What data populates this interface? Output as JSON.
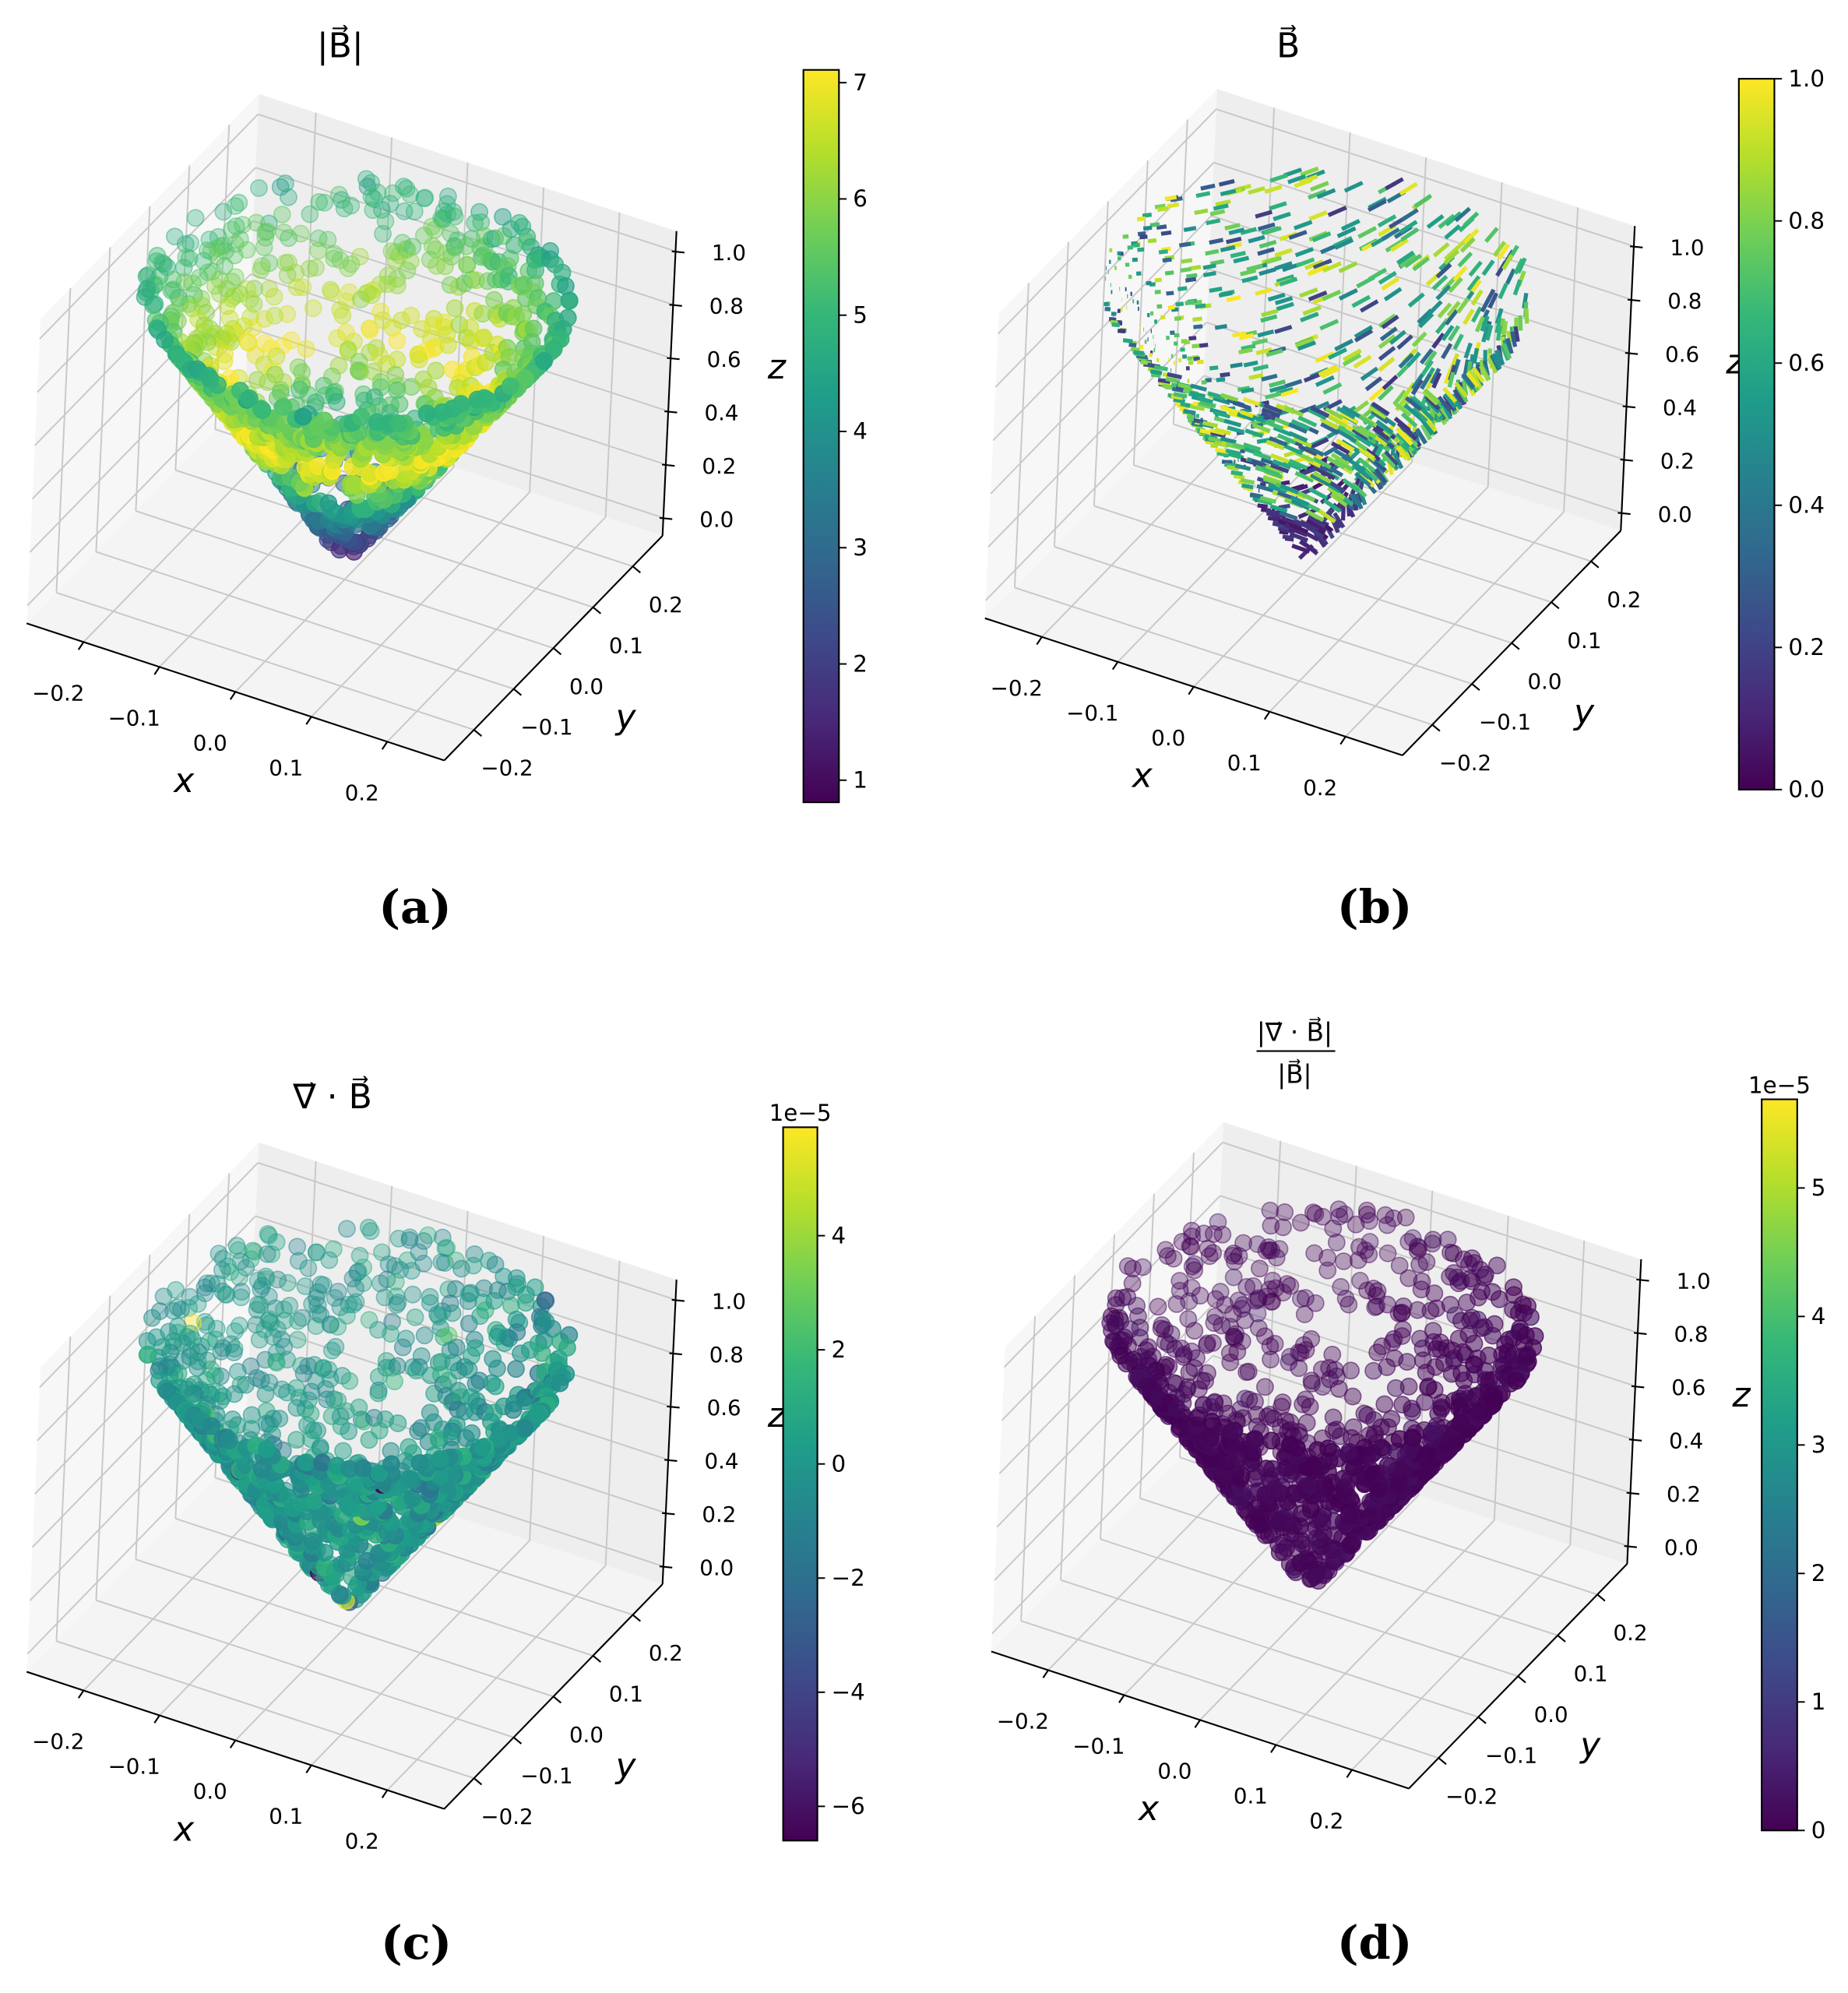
{
  "chart_data": [
    {
      "type": "scatter3d",
      "title": "|B⃗|",
      "xlabel": "x",
      "ylabel": "y",
      "zlabel": "z",
      "xticks": [
        "−0.2",
        "−0.1",
        "0.0",
        "0.1",
        "0.2"
      ],
      "yticks": [
        "−0.2",
        "−0.1",
        "0.0",
        "0.1",
        "0.2"
      ],
      "zticks": [
        "0.0",
        "0.2",
        "0.4",
        "0.6",
        "0.8",
        "1.0"
      ],
      "xlim": [
        -0.275,
        0.275
      ],
      "ylim": [
        -0.275,
        0.275
      ],
      "zlim": [
        -0.067,
        1.076
      ],
      "colormap": "viridis",
      "colorbar": {
        "range": [
          0.81,
          7.11
        ],
        "ticks": [
          "1",
          "2",
          "3",
          "4",
          "5",
          "6",
          "7"
        ],
        "tick_values": [
          1,
          2,
          3,
          4,
          5,
          6,
          7
        ],
        "offset_text": ""
      },
      "shape": "cone surface, apex at z=0, radius ~0.25 at z=1",
      "caption": "(a)"
    },
    {
      "type": "quiver3d",
      "title": "B⃗",
      "xlabel": "x",
      "ylabel": "y",
      "zlabel": "z",
      "xticks": [
        "−0.2",
        "−0.1",
        "0.0",
        "0.1",
        "0.2"
      ],
      "yticks": [
        "−0.2",
        "−0.1",
        "0.0",
        "0.1",
        "0.2"
      ],
      "zticks": [
        "0.0",
        "0.2",
        "0.4",
        "0.6",
        "0.8",
        "1.0"
      ],
      "xlim": [
        -0.275,
        0.275
      ],
      "ylim": [
        -0.275,
        0.275
      ],
      "zlim": [
        -0.067,
        1.076
      ],
      "colormap": "viridis",
      "colorbar": {
        "range": [
          0.0,
          1.0
        ],
        "ticks": [
          "0.0",
          "0.2",
          "0.4",
          "0.6",
          "0.8",
          "1.0"
        ],
        "tick_values": [
          0,
          0.2,
          0.4,
          0.6,
          0.8,
          1.0
        ],
        "offset_text": ""
      },
      "caption": "(b)"
    },
    {
      "type": "scatter3d",
      "title": "∇⃗ · B⃗",
      "xlabel": "x",
      "ylabel": "y",
      "zlabel": "z",
      "xticks": [
        "−0.2",
        "−0.1",
        "0.0",
        "0.1",
        "0.2"
      ],
      "yticks": [
        "−0.2",
        "−0.1",
        "0.0",
        "0.1",
        "0.2"
      ],
      "zticks": [
        "0.0",
        "0.2",
        "0.4",
        "0.6",
        "0.8",
        "1.0"
      ],
      "xlim": [
        -0.275,
        0.275
      ],
      "ylim": [
        -0.275,
        0.275
      ],
      "zlim": [
        -0.067,
        1.076
      ],
      "colormap": "viridis",
      "colorbar": {
        "range": [
          -6.6,
          5.9
        ],
        "ticks": [
          "−6",
          "−4",
          "−2",
          "0",
          "2",
          "4"
        ],
        "tick_values": [
          -6,
          -4,
          -2,
          0,
          2,
          4
        ],
        "offset_text": "1e−5"
      },
      "caption": "(c)"
    },
    {
      "type": "scatter3d",
      "title": "|∇⃗ · B⃗| / |B⃗|",
      "title_numerator": "|∇⃗ · B⃗|",
      "title_denominator": "|B⃗|",
      "xlabel": "x",
      "ylabel": "y",
      "zlabel": "z",
      "xticks": [
        "−0.2",
        "−0.1",
        "0.0",
        "0.1",
        "0.2"
      ],
      "yticks": [
        "−0.2",
        "−0.1",
        "0.0",
        "0.1",
        "0.2"
      ],
      "zticks": [
        "0.0",
        "0.2",
        "0.4",
        "0.6",
        "0.8",
        "1.0"
      ],
      "xlim": [
        -0.275,
        0.275
      ],
      "ylim": [
        -0.275,
        0.275
      ],
      "zlim": [
        -0.067,
        1.076
      ],
      "colormap": "viridis",
      "colorbar": {
        "range": [
          0.0,
          5.69
        ],
        "ticks": [
          "0",
          "1",
          "2",
          "3",
          "4",
          "5"
        ],
        "tick_values": [
          0,
          1,
          2,
          3,
          4,
          5
        ],
        "offset_text": "1e−5"
      },
      "caption": "(d)"
    }
  ]
}
